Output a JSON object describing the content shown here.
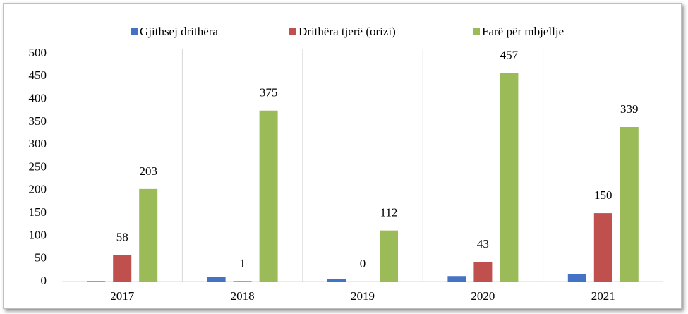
{
  "chart_data": {
    "type": "bar",
    "categories": [
      "2017",
      "2018",
      "2019",
      "2020",
      "2021"
    ],
    "series": [
      {
        "name": "Gjithsej drithëra",
        "color": "#4472c4",
        "values": [
          1,
          10,
          5,
          12,
          16
        ],
        "data_labels": false
      },
      {
        "name": "Drithëra tjerë (orizi)",
        "color": "#c0504d",
        "values": [
          58,
          1,
          0,
          43,
          150
        ],
        "data_labels": true
      },
      {
        "name": "Farë për mbjellje",
        "color": "#9bbb59",
        "values": [
          203,
          375,
          112,
          457,
          339
        ],
        "data_labels": true
      }
    ],
    "ylim": [
      0,
      500
    ],
    "yticks": [
      0,
      50,
      100,
      150,
      200,
      250,
      300,
      350,
      400,
      450,
      500
    ],
    "legend": "top"
  }
}
